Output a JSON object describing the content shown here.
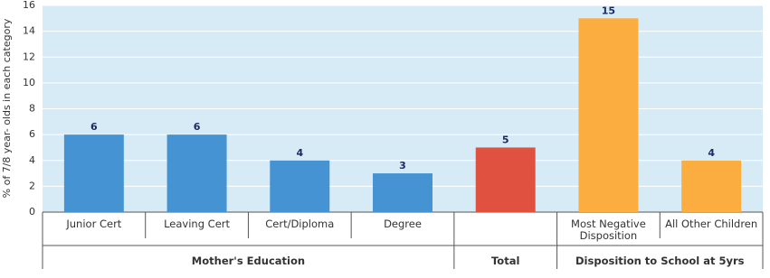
{
  "chart_data": {
    "type": "bar",
    "y_label": "% of 7/8 year- olds in each category",
    "ylim": [
      0,
      16
    ],
    "yticks": [
      0,
      2,
      4,
      6,
      8,
      10,
      12,
      14,
      16
    ],
    "grid": true,
    "groups": [
      {
        "label": "Mother's Education",
        "color": "#4593d2",
        "categories": [
          "Junior Cert",
          "Leaving Cert",
          "Cert/Diploma",
          "Degree"
        ],
        "values": [
          6,
          6,
          4,
          3
        ]
      },
      {
        "label": "Total",
        "color": "#e0513f",
        "categories": [
          null
        ],
        "values": [
          5
        ]
      },
      {
        "label": "Disposition to School at 5yrs",
        "color": "#fbad3f",
        "categories": [
          "Most Negative Disposition",
          "All Other Children"
        ],
        "values": [
          15,
          4
        ]
      }
    ]
  }
}
